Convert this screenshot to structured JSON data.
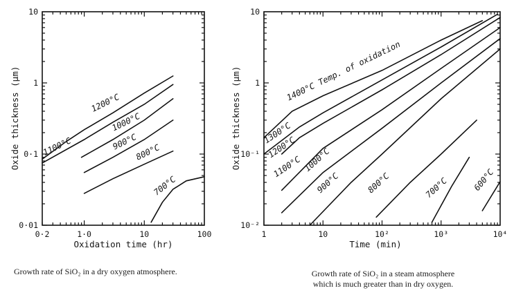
{
  "chart_data": [
    {
      "type": "line",
      "id": "dry",
      "xscale": "log",
      "yscale": "log",
      "xlim": [
        0.2,
        100
      ],
      "ylim": [
        0.01,
        10
      ],
      "xlabel": "Oxidation time (hr)",
      "ylabel": "Oxide thickness (µm)",
      "x_ticks": [
        {
          "value": 0.2,
          "label": "0·2"
        },
        {
          "value": 1,
          "label": "1·0"
        },
        {
          "value": 10,
          "label": "10"
        },
        {
          "value": 100,
          "label": "100"
        }
      ],
      "y_ticks": [
        {
          "value": 0.01,
          "label": "0·01"
        },
        {
          "value": 0.1,
          "label": "0·1"
        },
        {
          "value": 1,
          "label": "1"
        },
        {
          "value": 10,
          "label": "10"
        }
      ],
      "caption": "Growth rate of SiO₂ in  a dry oxygen atmosphere.",
      "series": [
        {
          "name": "1200°C",
          "x": [
            0.2,
            0.5,
            1,
            3,
            10,
            30
          ],
          "y": [
            0.085,
            0.15,
            0.22,
            0.38,
            0.72,
            1.25
          ]
        },
        {
          "name": "1100°C",
          "x": [
            0.2,
            1,
            3,
            10,
            30
          ],
          "y": [
            0.075,
            0.16,
            0.28,
            0.5,
            0.95
          ]
        },
        {
          "name": "1000°C",
          "x": [
            0.9,
            3,
            10,
            30
          ],
          "y": [
            0.09,
            0.16,
            0.3,
            0.6
          ]
        },
        {
          "name": "900°C",
          "x": [
            1,
            3,
            10,
            30
          ],
          "y": [
            0.055,
            0.09,
            0.16,
            0.3
          ]
        },
        {
          "name": "800°C",
          "x": [
            1,
            3,
            10,
            30
          ],
          "y": [
            0.028,
            0.045,
            0.072,
            0.11
          ]
        },
        {
          "name": "700°C",
          "x": [
            13,
            20,
            30,
            50,
            100
          ],
          "y": [
            0.011,
            0.021,
            0.032,
            0.042,
            0.048
          ]
        }
      ],
      "labels": [
        {
          "text": "1200°C",
          "x": 1.4,
          "y": 0.39,
          "angle": -26
        },
        {
          "text": "1100°C",
          "x": 0.22,
          "y": 0.095,
          "angle": -26
        },
        {
          "text": "1000°C",
          "x": 3.1,
          "y": 0.21,
          "angle": -26
        },
        {
          "text": "900°C",
          "x": 3.2,
          "y": 0.115,
          "angle": -26
        },
        {
          "text": "800°C",
          "x": 7.8,
          "y": 0.082,
          "angle": -26
        },
        {
          "text": "700°C",
          "x": 16,
          "y": 0.026,
          "angle": -38
        }
      ]
    },
    {
      "type": "line",
      "id": "steam",
      "xscale": "log",
      "yscale": "log",
      "xlim": [
        1,
        10000
      ],
      "ylim": [
        0.01,
        10
      ],
      "xlabel": "Time (min)",
      "ylabel": "Oxide thickness (µm)",
      "x_ticks": [
        {
          "value": 1,
          "label": "1"
        },
        {
          "value": 10,
          "label": "10"
        },
        {
          "value": 100,
          "label": "10²"
        },
        {
          "value": 1000,
          "label": "10³"
        },
        {
          "value": 10000,
          "label": "10⁴"
        }
      ],
      "y_ticks": [
        {
          "value": 0.01,
          "label": "10⁻²"
        },
        {
          "value": 0.1,
          "label": "10⁻¹"
        },
        {
          "value": 1,
          "label": "1"
        },
        {
          "value": 10,
          "label": "10"
        }
      ],
      "caption_lines": [
        "Growth rate of SiO₂ in a steam atmosphere",
        "which is much greater than in dry oxygen."
      ],
      "series": [
        {
          "name": "1400°C",
          "x": [
            1,
            3,
            10,
            100,
            1000,
            5000
          ],
          "y": [
            0.17,
            0.4,
            0.66,
            1.5,
            4,
            7.5
          ]
        },
        {
          "name": "1300°C",
          "x": [
            1,
            4,
            10,
            100,
            1000,
            9000
          ],
          "y": [
            0.1,
            0.24,
            0.38,
            1.1,
            3.2,
            9.2
          ]
        },
        {
          "name": "1200°C",
          "x": [
            2,
            4,
            10,
            100,
            1000,
            10000
          ],
          "y": [
            0.1,
            0.17,
            0.27,
            0.8,
            2.5,
            8.3
          ]
        },
        {
          "name": "1100°C",
          "x": [
            2,
            10,
            100,
            1000,
            10000
          ],
          "y": [
            0.031,
            0.12,
            0.42,
            1.6,
            6
          ]
        },
        {
          "name": "1000°C",
          "x": [
            2,
            10,
            100,
            1000,
            10000
          ],
          "y": [
            0.015,
            0.055,
            0.23,
            1,
            4.2
          ]
        },
        {
          "name": "900°C",
          "x": [
            6,
            30,
            100,
            1000,
            10000
          ],
          "y": [
            0.01,
            0.04,
            0.1,
            0.6,
            3
          ]
        },
        {
          "name": "800°C",
          "x": [
            80,
            300,
            1000,
            4000
          ],
          "y": [
            0.013,
            0.04,
            0.1,
            0.3
          ]
        },
        {
          "name": "700°C",
          "x": [
            700,
            1500,
            3000
          ],
          "y": [
            0.011,
            0.035,
            0.09
          ]
        },
        {
          "name": "600°C",
          "x": [
            5000,
            10000
          ],
          "y": [
            0.016,
            0.041
          ]
        }
      ],
      "labels": [
        {
          "text": "1400°C Temp. of oxidation",
          "x": 2.6,
          "y": 0.56,
          "angle": -26
        },
        {
          "text": "1300°C",
          "x": 1.1,
          "y": 0.14,
          "angle": -34
        },
        {
          "text": "1200°C",
          "x": 1.3,
          "y": 0.088,
          "angle": -34
        },
        {
          "text": "1100°C",
          "x": 1.6,
          "y": 0.047,
          "angle": -34
        },
        {
          "text": "1000°C",
          "x": 5.5,
          "y": 0.056,
          "angle": -42
        },
        {
          "text": "900°C",
          "x": 9,
          "y": 0.028,
          "angle": -42
        },
        {
          "text": "800°C",
          "x": 65,
          "y": 0.028,
          "angle": -42
        },
        {
          "text": "700°C",
          "x": 620,
          "y": 0.024,
          "angle": -42
        },
        {
          "text": "600°C",
          "x": 4200,
          "y": 0.03,
          "angle": -50
        }
      ]
    }
  ]
}
